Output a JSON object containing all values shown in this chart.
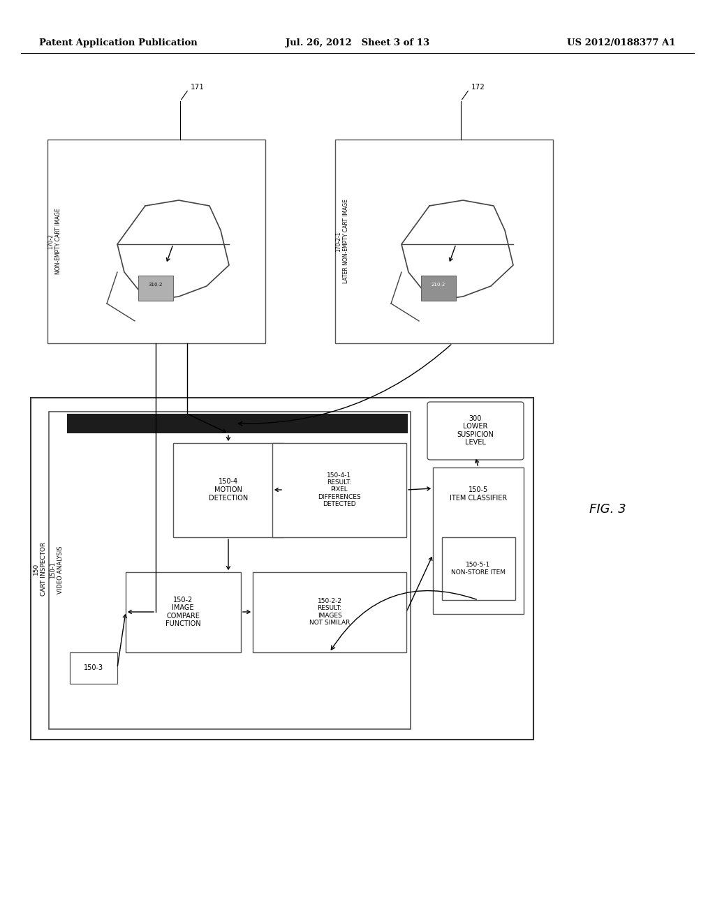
{
  "title_left": "Patent Application Publication",
  "title_mid": "Jul. 26, 2012   Sheet 3 of 13",
  "title_right": "US 2012/0188377 A1",
  "fig_label": "FIG. 3",
  "bg_color": "#ffffff",
  "text_color": "#000000",
  "header_font_size": 9.5,
  "body_font_size": 7.5,
  "small_font_size": 6.5,
  "tiny_font_size": 5.5
}
